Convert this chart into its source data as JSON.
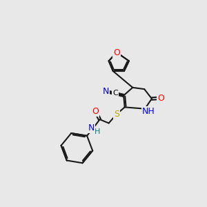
{
  "bg_color": "#e8e8e8",
  "bond_color": "#1a1a1a",
  "bond_lw": 1.5,
  "atom_colors": {
    "N": "#0000ff",
    "O": "#ff0000",
    "S": "#bbaa00",
    "C": "#000000",
    "H": "#008080",
    "nitrile_N": "#0000cc"
  }
}
